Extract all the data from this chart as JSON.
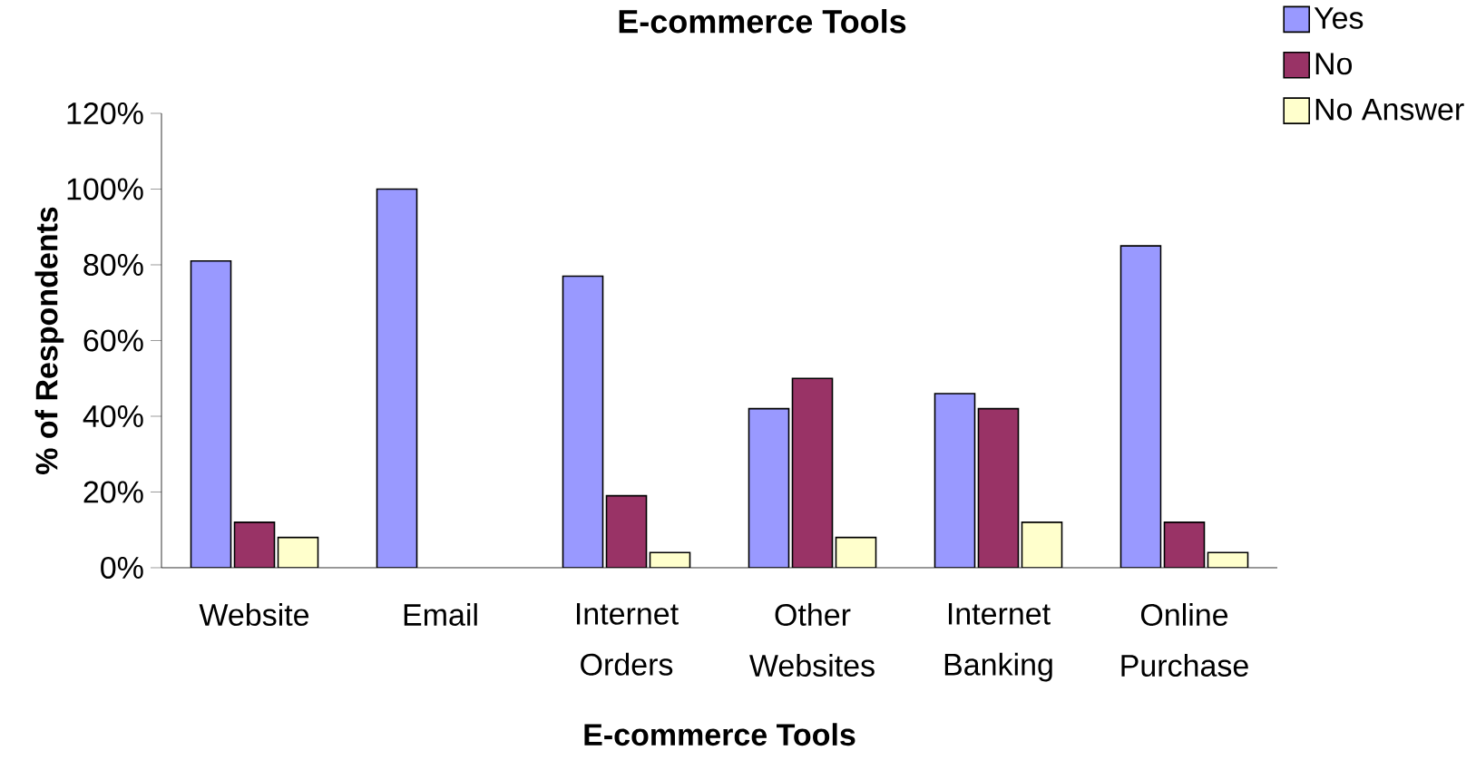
{
  "chart_data": {
    "type": "bar",
    "title": "E-commerce Tools",
    "xlabel": "E-commerce Tools",
    "ylabel": "% of Respondents",
    "categories": [
      "Website",
      "Email",
      "Internet Orders",
      "Other Websites",
      "Internet Banking",
      "Online Purchase"
    ],
    "series": [
      {
        "name": "Yes",
        "color": "#9999ff",
        "values": [
          81,
          100,
          77,
          42,
          46,
          85
        ]
      },
      {
        "name": "No",
        "color": "#993366",
        "values": [
          12,
          null,
          19,
          50,
          42,
          12
        ]
      },
      {
        "name": "No Answer",
        "color": "#ffffcc",
        "values": [
          8,
          null,
          4,
          8,
          12,
          4
        ]
      }
    ],
    "ylim": [
      0,
      120
    ],
    "yticks": [
      {
        "value": 0,
        "label": "0%"
      },
      {
        "value": 20,
        "label": "20%"
      },
      {
        "value": 40,
        "label": "40%"
      },
      {
        "value": 60,
        "label": "60%"
      },
      {
        "value": 80,
        "label": "80%"
      },
      {
        "value": 100,
        "label": "100%"
      },
      {
        "value": 120,
        "label": "120%"
      }
    ],
    "grid": false,
    "legend": "top right"
  }
}
